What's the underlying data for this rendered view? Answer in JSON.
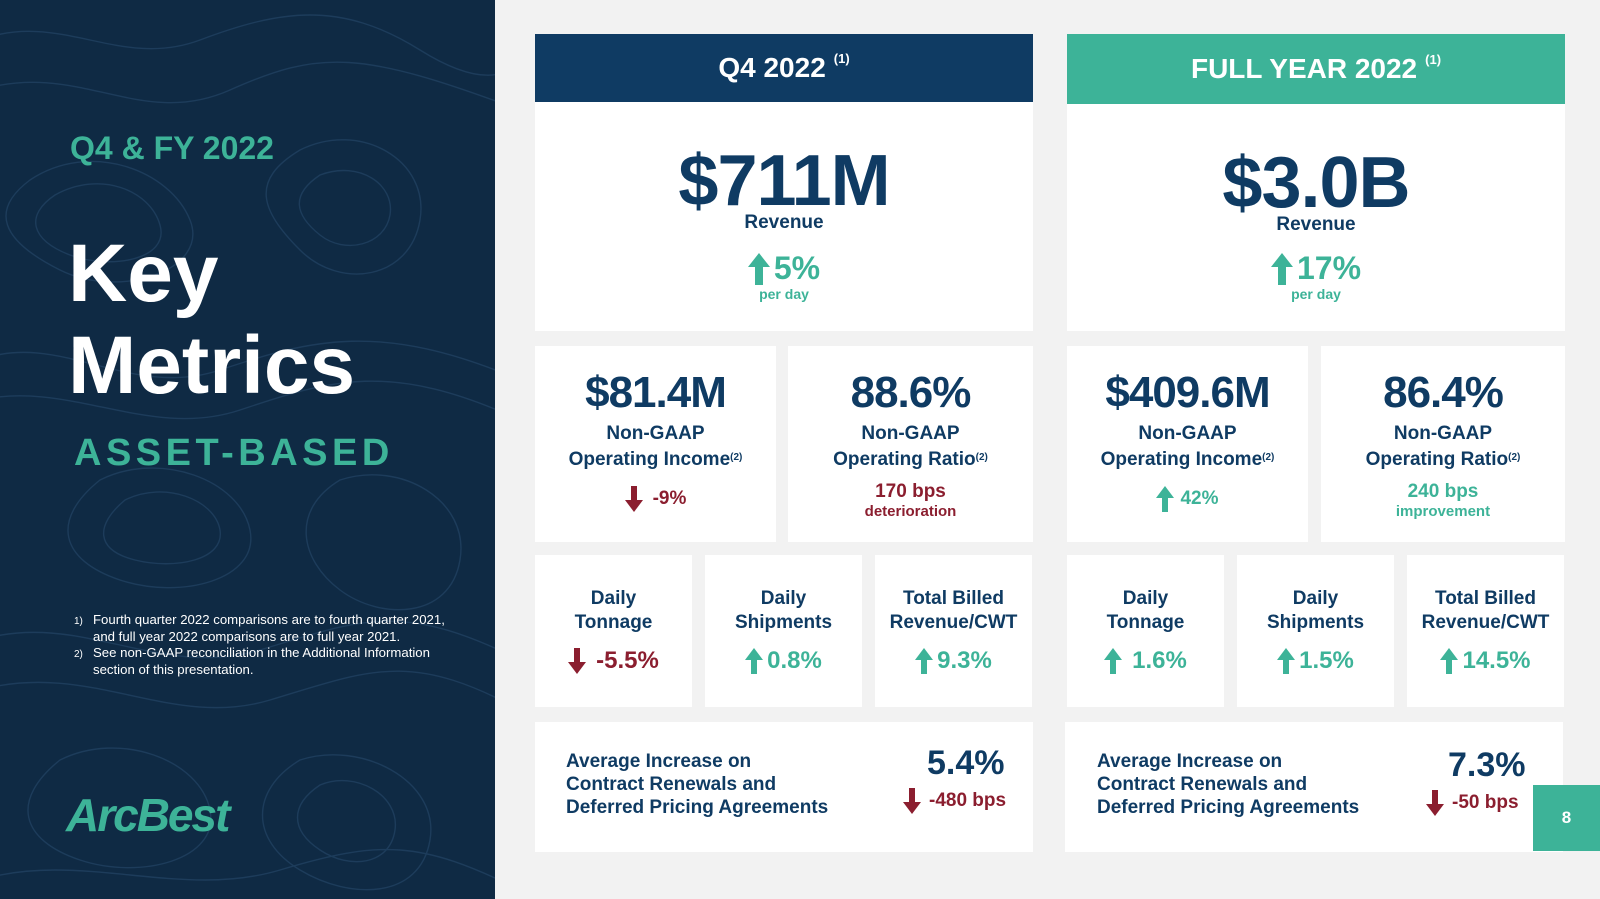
{
  "left": {
    "eyebrow": "Q4 & FY 2022",
    "title_line1": "Key",
    "title_line2": "Metrics",
    "segment": "ASSET-BASED",
    "notes": [
      {
        "num": "1)",
        "text": "Fourth quarter 2022 comparisons are to fourth quarter 2021, and full year 2022 comparisons are to full year 2021."
      },
      {
        "num": "2)",
        "text": "See non-GAAP reconciliation in the Additional Information section of this presentation."
      }
    ],
    "logo": "ArcBest"
  },
  "colors": {
    "navy": "#0f3b63",
    "green": "#3db398",
    "red": "#8b1e2f",
    "panel": "#0f2a44"
  },
  "q4": {
    "header": "Q4 2022",
    "header_note": "(1)",
    "revenue": {
      "value": "$711M",
      "label": "Revenue",
      "change": "5%",
      "direction": "up",
      "sub": "per day"
    },
    "op_income": {
      "value": "$81.4M",
      "label1": "Non-GAAP",
      "label2": "Operating Income",
      "note": "(2)",
      "change": "-9%",
      "direction": "down"
    },
    "op_ratio": {
      "value": "88.6%",
      "label1": "Non-GAAP",
      "label2": "Operating Ratio",
      "note": "(2)",
      "bps": "170 bps",
      "bps_sub": "deterioration",
      "direction": "down"
    },
    "tonnage": {
      "label1": "Daily",
      "label2": "Tonnage",
      "change": "-5.5%",
      "direction": "down"
    },
    "shipments": {
      "label1": "Daily",
      "label2": "Shipments",
      "change": "0.8%",
      "direction": "up"
    },
    "billed": {
      "label1": "Total Billed",
      "label2": "Revenue/CWT",
      "change": "9.3%",
      "direction": "up"
    },
    "pricing": {
      "line1": "Average Increase on",
      "line2": "Contract Renewals and",
      "line3": "Deferred Pricing Agreements",
      "value": "5.4%",
      "change": "-480 bps",
      "direction": "down"
    }
  },
  "fy": {
    "header": "FULL YEAR 2022",
    "header_note": "(1)",
    "revenue": {
      "value": "$3.0B",
      "label": "Revenue",
      "change": "17%",
      "direction": "up",
      "sub": "per day"
    },
    "op_income": {
      "value": "$409.6M",
      "label1": "Non-GAAP",
      "label2": "Operating Income",
      "note": "(2)",
      "change": "42%",
      "direction": "up"
    },
    "op_ratio": {
      "value": "86.4%",
      "label1": "Non-GAAP",
      "label2": "Operating Ratio",
      "note": "(2)",
      "bps": "240 bps",
      "bps_sub": "improvement",
      "direction": "up"
    },
    "tonnage": {
      "label1": "Daily",
      "label2": "Tonnage",
      "change": "1.6%",
      "direction": "up"
    },
    "shipments": {
      "label1": "Daily",
      "label2": "Shipments",
      "change": "1.5%",
      "direction": "up"
    },
    "billed": {
      "label1": "Total Billed",
      "label2": "Revenue/CWT",
      "change": "14.5%",
      "direction": "up"
    },
    "pricing": {
      "line1": "Average Increase on",
      "line2": "Contract Renewals and",
      "line3": "Deferred Pricing Agreements",
      "value": "7.3%",
      "change": "-50 bps",
      "direction": "down"
    }
  },
  "page_number": "8"
}
